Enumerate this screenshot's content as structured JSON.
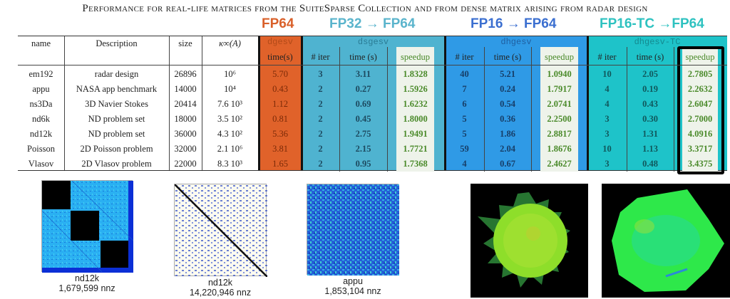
{
  "title": "Performance for real-life matrices from the SuiteSparse Collection and from dense matrix arising from radar design",
  "groups": [
    {
      "label": "FP64",
      "algorithm": "dgesv",
      "color": "#e0622a",
      "label_color": "#d9602a"
    },
    {
      "label": "FP32 → FP64",
      "algorithm": "dsgesv",
      "color": "#4fb3d0",
      "label_color": "#5ab4cc"
    },
    {
      "label": "FP16 → FP64",
      "algorithm": "dhgesv",
      "color": "#2f9ae6",
      "label_color": "#3b6fd0"
    },
    {
      "label": "FP16-TC →FP64",
      "algorithm": "dhgesv-TC",
      "color": "#1ec3c9",
      "label_color": "#2ec2c0"
    }
  ],
  "headers": {
    "name": "name",
    "description": "Description",
    "size": "size",
    "kappa": "κ∞(A)",
    "time_fp64": "time(s)",
    "iter": "# iter",
    "time": "time (s)",
    "speedup": "speedup"
  },
  "rows": [
    {
      "name": "em192",
      "description": "radar design",
      "size": "26896",
      "kappa": "10⁶",
      "fp64_time": "5.70",
      "fp32_iter": "3",
      "fp32_time": "3.11",
      "fp32_speedup": "1.8328",
      "fp16_iter": "40",
      "fp16_time": "5.21",
      "fp16_speedup": "1.0940",
      "tc_iter": "10",
      "tc_time": "2.05",
      "tc_speedup": "2.7805"
    },
    {
      "name": "appu",
      "description": "NASA app benchmark",
      "size": "14000",
      "kappa": "10⁴",
      "fp64_time": "0.43",
      "fp32_iter": "2",
      "fp32_time": "0.27",
      "fp32_speedup": "1.5926",
      "fp16_iter": "7",
      "fp16_time": "0.24",
      "fp16_speedup": "1.7917",
      "tc_iter": "4",
      "tc_time": "0.19",
      "tc_speedup": "2.2632"
    },
    {
      "name": "ns3Da",
      "description": "3D Navier Stokes",
      "size": "20414",
      "kappa": "7.6 10³",
      "fp64_time": "1.12",
      "fp32_iter": "2",
      "fp32_time": "0.69",
      "fp32_speedup": "1.6232",
      "fp16_iter": "6",
      "fp16_time": "0.54",
      "fp16_speedup": "2.0741",
      "tc_iter": "4",
      "tc_time": "0.43",
      "tc_speedup": "2.6047"
    },
    {
      "name": "nd6k",
      "description": "ND problem set",
      "size": "18000",
      "kappa": "3.5 10²",
      "fp64_time": "0.81",
      "fp32_iter": "2",
      "fp32_time": "0.45",
      "fp32_speedup": "1.8000",
      "fp16_iter": "5",
      "fp16_time": "0.36",
      "fp16_speedup": "2.2500",
      "tc_iter": "3",
      "tc_time": "0.30",
      "tc_speedup": "2.7000"
    },
    {
      "name": "nd12k",
      "description": "ND problem set",
      "size": "36000",
      "kappa": "4.3 10²",
      "fp64_time": "5.36",
      "fp32_iter": "2",
      "fp32_time": "2.75",
      "fp32_speedup": "1.9491",
      "fp16_iter": "5",
      "fp16_time": "1.86",
      "fp16_speedup": "2.8817",
      "tc_iter": "3",
      "tc_time": "1.31",
      "tc_speedup": "4.0916"
    },
    {
      "name": "Poisson",
      "description": "2D Poisson problem",
      "size": "32000",
      "kappa": "2.1 10⁶",
      "fp64_time": "3.81",
      "fp32_iter": "2",
      "fp32_time": "2.15",
      "fp32_speedup": "1.7721",
      "fp16_iter": "59",
      "fp16_time": "2.04",
      "fp16_speedup": "1.8676",
      "tc_iter": "10",
      "tc_time": "1.13",
      "tc_speedup": "3.3717"
    },
    {
      "name": "Vlasov",
      "description": "2D Vlasov problem",
      "size": "22000",
      "kappa": "8.3 10³",
      "fp64_time": "1.65",
      "fp32_iter": "2",
      "fp32_time": "0.95",
      "fp32_speedup": "1.7368",
      "fp16_iter": "4",
      "fp16_time": "0.67",
      "fp16_speedup": "2.4627",
      "tc_iter": "3",
      "tc_time": "0.48",
      "tc_speedup": "3.4375"
    }
  ],
  "figures": [
    {
      "name": "nd12k",
      "nnz": "1,679,599 nnz"
    },
    {
      "name": "nd12k",
      "nnz": "14,220,946 nnz"
    },
    {
      "name": "appu",
      "nnz": "1,853,104 nnz"
    }
  ],
  "chart_data": {
    "type": "table",
    "title": "Performance for real-life matrices from the SuiteSparse Collection and from dense matrix arising from radar design",
    "columns": [
      "name",
      "Description",
      "size",
      "κ∞(A)",
      "FP64 dgesv time(s)",
      "FP32→FP64 dsgesv # iter",
      "FP32→FP64 dsgesv time (s)",
      "FP32→FP64 dsgesv speedup",
      "FP16→FP64 dhgesv # iter",
      "FP16→FP64 dhgesv time (s)",
      "FP16→FP64 dhgesv speedup",
      "FP16-TC→FP64 dhgesv-TC # iter",
      "FP16-TC→FP64 dhgesv-TC time (s)",
      "FP16-TC→FP64 dhgesv-TC speedup"
    ],
    "categories": [
      "em192",
      "appu",
      "ns3Da",
      "nd6k",
      "nd12k",
      "Poisson",
      "Vlasov"
    ],
    "series": [
      {
        "name": "FP64 dgesv time(s)",
        "values": [
          5.7,
          0.43,
          1.12,
          0.81,
          5.36,
          3.81,
          1.65
        ]
      },
      {
        "name": "dsgesv # iter",
        "values": [
          3,
          2,
          2,
          2,
          2,
          2,
          2
        ]
      },
      {
        "name": "dsgesv time (s)",
        "values": [
          3.11,
          0.27,
          0.69,
          0.45,
          2.75,
          2.15,
          0.95
        ]
      },
      {
        "name": "dsgesv speedup",
        "values": [
          1.8328,
          1.5926,
          1.6232,
          1.8,
          1.9491,
          1.7721,
          1.7368
        ]
      },
      {
        "name": "dhgesv # iter",
        "values": [
          40,
          7,
          6,
          5,
          5,
          59,
          4
        ]
      },
      {
        "name": "dhgesv time (s)",
        "values": [
          5.21,
          0.24,
          0.54,
          0.36,
          1.86,
          2.04,
          0.67
        ]
      },
      {
        "name": "dhgesv speedup",
        "values": [
          1.094,
          1.7917,
          2.0741,
          2.25,
          2.8817,
          1.8676,
          2.4627
        ]
      },
      {
        "name": "dhgesv-TC # iter",
        "values": [
          10,
          4,
          4,
          3,
          3,
          10,
          3
        ]
      },
      {
        "name": "dhgesv-TC time (s)",
        "values": [
          2.05,
          0.19,
          0.43,
          0.3,
          1.31,
          1.13,
          0.48
        ]
      },
      {
        "name": "dhgesv-TC speedup",
        "values": [
          2.7805,
          2.2632,
          2.6047,
          2.7,
          4.0916,
          3.3717,
          3.4375
        ]
      }
    ],
    "size": [
      26896,
      14000,
      20414,
      18000,
      36000,
      32000,
      22000
    ],
    "kappa": [
      "10^6",
      "10^4",
      "7.6e3",
      "3.5e2",
      "4.3e2",
      "2.1e6",
      "8.3e3"
    ]
  }
}
